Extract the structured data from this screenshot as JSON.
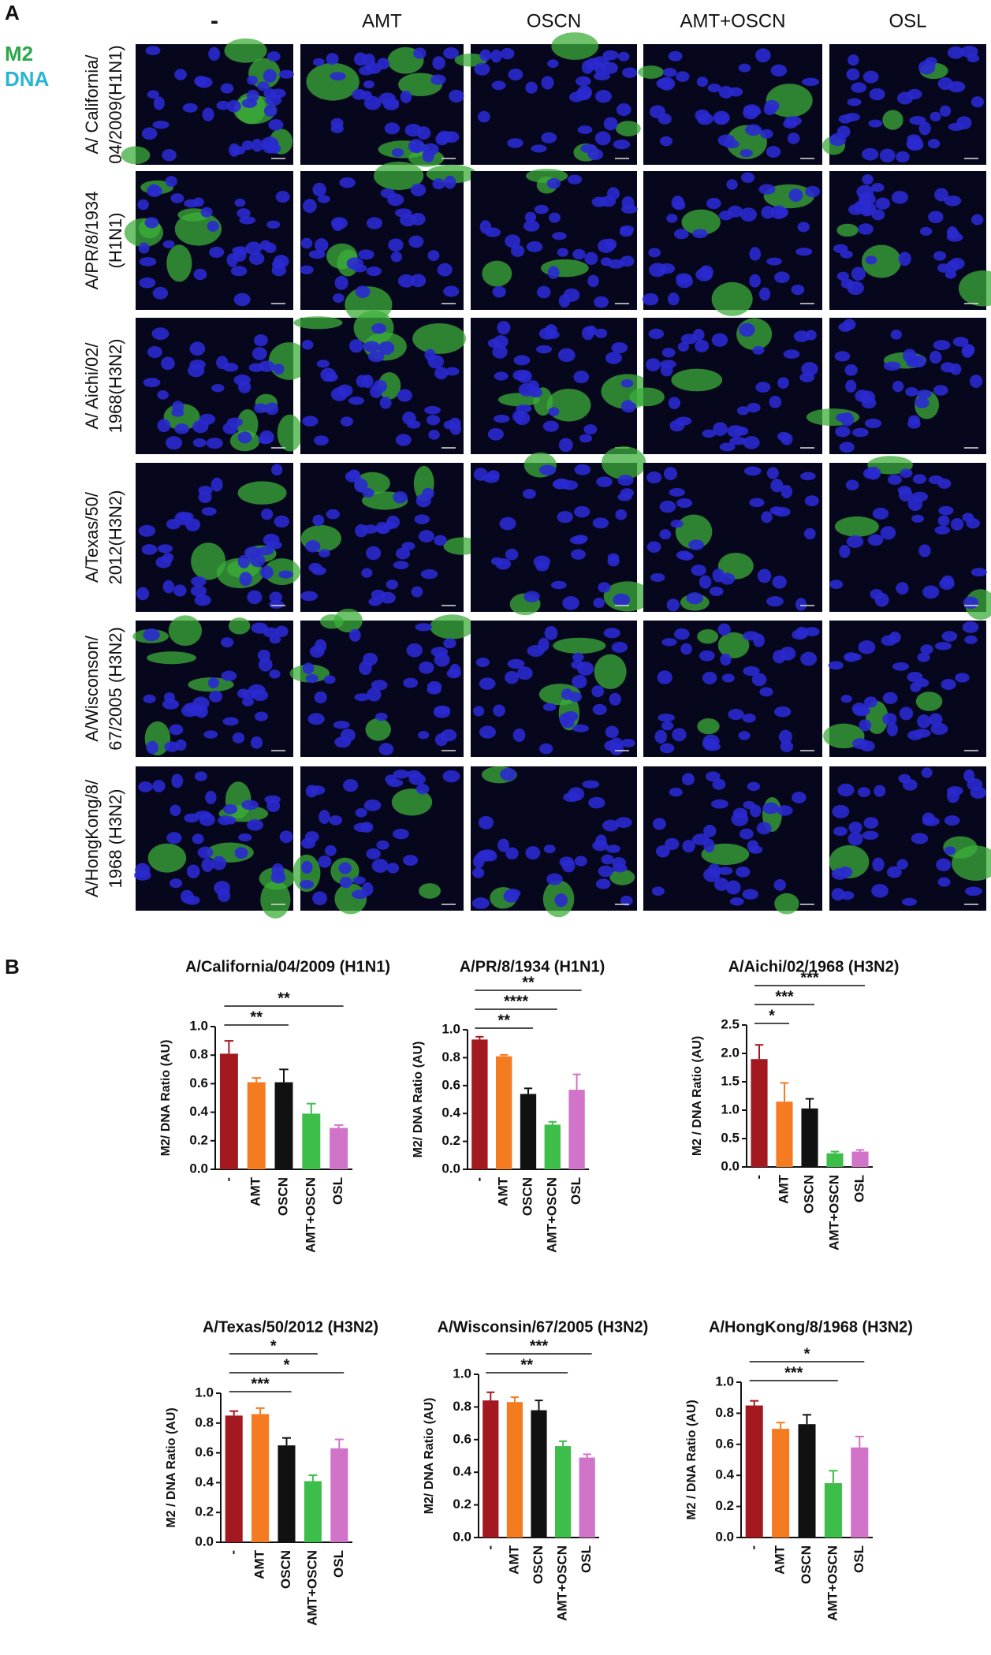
{
  "panel_a": {
    "label": "A",
    "channels": [
      {
        "name": "M2",
        "color": "#2aa84a"
      },
      {
        "name": "DNA",
        "color": "#2ab4d4"
      }
    ],
    "columns": [
      "-",
      "AMT",
      "OSCN",
      "AMT+OSCN",
      "OSL"
    ],
    "rows": [
      [
        "A/ California/",
        "04/2009(H1N1)"
      ],
      [
        "A/PR/8/1934",
        "(H1N1)"
      ],
      [
        "A/ Aichi/02/",
        "1968(H3N2)"
      ],
      [
        "A/Texas/50/",
        "2012(H3N2)"
      ],
      [
        "A/Wisconson/",
        "67/2005 (H3N2)"
      ],
      [
        "A/HongKong/8/",
        "1968 (H3N2)"
      ]
    ]
  },
  "panel_b": {
    "label": "B"
  },
  "chart_data": [
    {
      "type": "bar",
      "title": "A/California/04/2009 (H1N1)",
      "y_label": "M2/ DNA Ratio (AU)",
      "categories": [
        "-",
        "AMT",
        "OSCN",
        "AMT+OSCN",
        "OSL"
      ],
      "values": [
        0.81,
        0.61,
        0.61,
        0.39,
        0.29
      ],
      "errors": [
        0.09,
        0.03,
        0.09,
        0.07,
        0.02
      ],
      "colors": [
        "#a3191f",
        "#f47b20",
        "#111111",
        "#3dbd4a",
        "#d173c9"
      ],
      "ylim": [
        0,
        1
      ],
      "yticks": [
        {
          "value": 0,
          "label": "0.0"
        },
        0.2,
        0.4,
        0.6,
        0.8,
        {
          "value": 1,
          "label": "1.0"
        }
      ],
      "annotations": [
        {
          "label": "**",
          "between": [
            "-",
            "OSL"
          ]
        },
        {
          "label": "**",
          "between": [
            "-",
            "OSCN"
          ]
        }
      ]
    },
    {
      "type": "bar",
      "title": "A/PR/8/1934 (H1N1)",
      "y_label": "M2/ DNA Ratio (AU)",
      "categories": [
        "-",
        "AMT",
        "OSCN",
        "AMT+OSCN",
        "OSL"
      ],
      "values": [
        0.93,
        0.81,
        0.54,
        0.32,
        0.57
      ],
      "errors": [
        0.02,
        0.01,
        0.04,
        0.02,
        0.11
      ],
      "colors": [
        "#a3191f",
        "#f47b20",
        "#111111",
        "#3dbd4a",
        "#d173c9"
      ],
      "ylim": [
        0,
        1
      ],
      "yticks": [
        {
          "value": 0,
          "label": "0.0"
        },
        0.2,
        0.4,
        0.6,
        0.8,
        {
          "value": 1,
          "label": "1.0"
        }
      ],
      "annotations": [
        {
          "label": "**",
          "between": [
            "-",
            "OSL"
          ]
        },
        {
          "label": "****",
          "between": [
            "-",
            "AMT+OSCN"
          ]
        },
        {
          "label": "**",
          "between": [
            "-",
            "OSCN"
          ]
        }
      ]
    },
    {
      "type": "bar",
      "title": "A/Aichi/02/1968 (H3N2)",
      "y_label": "M2 / DNA Ratio (AU)",
      "categories": [
        "-",
        "AMT",
        "OSCN",
        "AMT+OSCN",
        "OSL"
      ],
      "values": [
        1.9,
        1.15,
        1.03,
        0.24,
        0.27
      ],
      "errors": [
        0.25,
        0.33,
        0.17,
        0.03,
        0.03
      ],
      "colors": [
        "#a3191f",
        "#f47b20",
        "#111111",
        "#3dbd4a",
        "#d173c9"
      ],
      "ylim": [
        0,
        2.5
      ],
      "yticks": [
        {
          "value": 0,
          "label": "0.0"
        },
        0.5,
        {
          "value": 1,
          "label": "1.0"
        },
        1.5,
        {
          "value": 2,
          "label": "2.0"
        },
        2.5
      ],
      "annotations": [
        {
          "label": "***",
          "between": [
            "-",
            "OSL"
          ]
        },
        {
          "label": "***",
          "between": [
            "-",
            "OSCN"
          ]
        },
        {
          "label": "*",
          "between": [
            "-",
            "AMT"
          ]
        }
      ]
    },
    {
      "type": "bar",
      "title": "A/Texas/50/2012 (H3N2)",
      "y_label": "M2 / DNA Ratio (AU)",
      "categories": [
        "-",
        "AMT",
        "OSCN",
        "AMT+OSCN",
        "OSL"
      ],
      "values": [
        0.85,
        0.86,
        0.65,
        0.41,
        0.63
      ],
      "errors": [
        0.03,
        0.04,
        0.05,
        0.04,
        0.06
      ],
      "colors": [
        "#a3191f",
        "#f47b20",
        "#111111",
        "#3dbd4a",
        "#d173c9"
      ],
      "ylim": [
        0,
        1
      ],
      "yticks": [
        {
          "value": 0,
          "label": "0.0"
        },
        0.2,
        0.4,
        0.6,
        0.8,
        {
          "value": 1,
          "label": "1.0"
        }
      ],
      "annotations": [
        {
          "label": "*",
          "between": [
            "-",
            "AMT+OSCN"
          ]
        },
        {
          "label": "*",
          "between": [
            "-",
            "OSL"
          ]
        },
        {
          "label": "***",
          "between": [
            "-",
            "OSCN"
          ]
        }
      ]
    },
    {
      "type": "bar",
      "title": "A/Wisconsin/67/2005 (H3N2)",
      "y_label": "M2/ DNA Ratio (AU)",
      "categories": [
        "-",
        "AMT",
        "OSCN",
        "AMT+OSCN",
        "OSL"
      ],
      "values": [
        0.84,
        0.83,
        0.78,
        0.56,
        0.49
      ],
      "errors": [
        0.05,
        0.03,
        0.06,
        0.03,
        0.02
      ],
      "colors": [
        "#a3191f",
        "#f47b20",
        "#111111",
        "#3dbd4a",
        "#d173c9"
      ],
      "ylim": [
        0,
        1
      ],
      "yticks": [
        {
          "value": 0,
          "label": "0.0"
        },
        0.2,
        0.4,
        0.6,
        0.8,
        {
          "value": 1,
          "label": "1.0"
        }
      ],
      "annotations": [
        {
          "label": "***",
          "between": [
            "-",
            "OSL"
          ]
        },
        {
          "label": "**",
          "between": [
            "-",
            "AMT+OSCN"
          ]
        }
      ]
    },
    {
      "type": "bar",
      "title": "A/HongKong/8/1968 (H3N2)",
      "y_label": "M2 / DNA Ratio (AU)",
      "categories": [
        "-",
        "AMT",
        "OSCN",
        "AMT+OSCN",
        "OSL"
      ],
      "values": [
        0.85,
        0.7,
        0.73,
        0.35,
        0.58
      ],
      "errors": [
        0.03,
        0.04,
        0.06,
        0.08,
        0.07
      ],
      "colors": [
        "#a3191f",
        "#f47b20",
        "#111111",
        "#3dbd4a",
        "#d173c9"
      ],
      "ylim": [
        0,
        1
      ],
      "yticks": [
        {
          "value": 0,
          "label": "0.0"
        },
        0.2,
        0.4,
        0.6,
        0.8,
        {
          "value": 1,
          "label": "1.0"
        }
      ],
      "annotations": [
        {
          "label": "*",
          "between": [
            "-",
            "OSL"
          ]
        },
        {
          "label": "***",
          "between": [
            "-",
            "AMT+OSCN"
          ]
        }
      ]
    }
  ]
}
